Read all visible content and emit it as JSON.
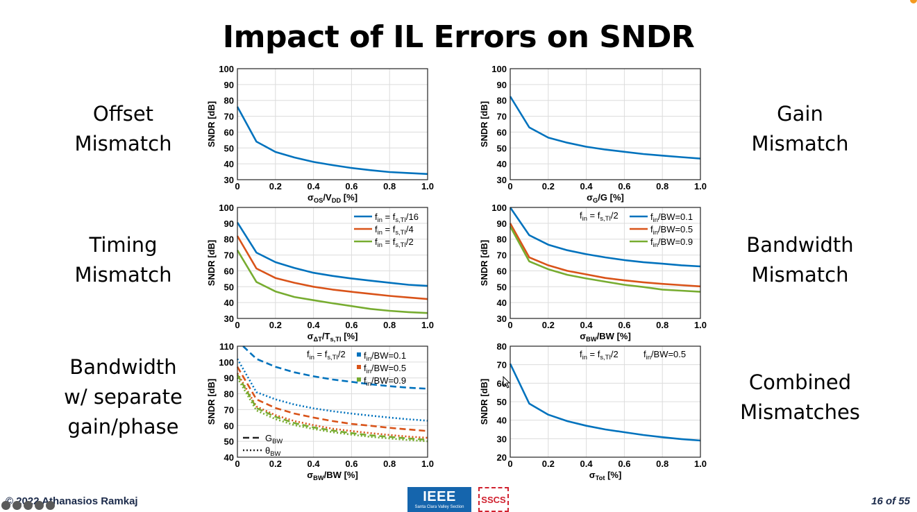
{
  "slide": {
    "title": "Impact of IL Errors on SNDR",
    "footer": "© 2022 Athanasios Ramkaj",
    "page": "16 of 55",
    "logos": {
      "ieee": "IEEE",
      "ieee_sub": "Santa Clara Valley Section",
      "sscs": "SSCS"
    }
  },
  "side_labels": {
    "offset": "Offset\nMismatch",
    "gain": "Gain\nMismatch",
    "timing": "Timing\nMismatch",
    "bandwidth": "Bandwidth\nMismatch",
    "bw_separate": "Bandwidth\nw/ separate\ngain/phase",
    "combined": "Combined\nMismatches"
  },
  "colors": {
    "blue": "#0072bd",
    "orange": "#d95319",
    "green": "#77ac30",
    "orange_accent": "#f39a1f"
  },
  "chart_data": [
    {
      "id": "offset",
      "type": "line",
      "xlabel": "σOS/VDD [%]",
      "ylabel": "SNDR [dB]",
      "xlim": [
        0,
        1
      ],
      "ylim": [
        30,
        100
      ],
      "xticks": [
        "0",
        "0.2",
        "0.4",
        "0.6",
        "0.8",
        "1.0"
      ],
      "yticks": [
        "30",
        "40",
        "50",
        "60",
        "70",
        "80",
        "90",
        "100"
      ],
      "grid": true,
      "annotations": [],
      "series": [
        {
          "color": "#0072bd",
          "dash": "solid",
          "x": [
            0,
            0.1,
            0.2,
            0.3,
            0.4,
            0.5,
            0.6,
            0.7,
            0.8,
            0.9,
            1.0
          ],
          "y": [
            76,
            54,
            47.5,
            44,
            41.2,
            39.2,
            37.4,
            36,
            34.8,
            34.2,
            33.6
          ]
        }
      ]
    },
    {
      "id": "gain",
      "type": "line",
      "xlabel": "σG/G [%]",
      "ylabel": "SNDR [dB]",
      "xlim": [
        0,
        1
      ],
      "ylim": [
        30,
        100
      ],
      "xticks": [
        "0",
        "0.2",
        "0.4",
        "0.6",
        "0.8",
        "1.0"
      ],
      "yticks": [
        "30",
        "40",
        "50",
        "60",
        "70",
        "80",
        "90",
        "100"
      ],
      "grid": true,
      "annotations": [],
      "series": [
        {
          "color": "#0072bd",
          "dash": "solid",
          "x": [
            0,
            0.1,
            0.2,
            0.3,
            0.4,
            0.5,
            0.6,
            0.7,
            0.8,
            0.9,
            1.0
          ],
          "y": [
            82.5,
            63,
            56.5,
            53.3,
            50.8,
            49,
            47.6,
            46.2,
            45.2,
            44.2,
            43.3
          ]
        }
      ]
    },
    {
      "id": "timing",
      "type": "line",
      "xlabel": "σΔT/Ts,TI [%]",
      "ylabel": "SNDR [dB]",
      "xlim": [
        0,
        1
      ],
      "ylim": [
        30,
        100
      ],
      "xticks": [
        "0",
        "0.2",
        "0.4",
        "0.6",
        "0.8",
        "1.0"
      ],
      "yticks": [
        "30",
        "40",
        "50",
        "60",
        "70",
        "80",
        "90",
        "100"
      ],
      "grid": true,
      "annotations": [],
      "legend_position": "top-right",
      "series": [
        {
          "name": "fin = fs,TI/16",
          "color": "#0072bd",
          "dash": "solid",
          "x": [
            0,
            0.1,
            0.2,
            0.3,
            0.4,
            0.5,
            0.6,
            0.7,
            0.8,
            0.9,
            1.0
          ],
          "y": [
            90.5,
            71.5,
            65.5,
            61.8,
            58.8,
            56.8,
            55.2,
            53.8,
            52.5,
            51.2,
            50.5
          ]
        },
        {
          "name": "fin = fs,TI/4",
          "color": "#d95319",
          "dash": "solid",
          "x": [
            0,
            0.1,
            0.2,
            0.3,
            0.4,
            0.5,
            0.6,
            0.7,
            0.8,
            0.9,
            1.0
          ],
          "y": [
            82,
            61.5,
            55.5,
            52.5,
            50,
            48.2,
            46.8,
            45.5,
            44.2,
            43.2,
            42.2
          ]
        },
        {
          "name": "fin = fs,TI/2",
          "color": "#77ac30",
          "dash": "solid",
          "x": [
            0,
            0.1,
            0.2,
            0.3,
            0.4,
            0.5,
            0.6,
            0.7,
            0.8,
            0.9,
            1.0
          ],
          "y": [
            73,
            53,
            47,
            43.5,
            41.5,
            39.6,
            37.8,
            36,
            34.8,
            34,
            33.4
          ]
        }
      ]
    },
    {
      "id": "bandwidth",
      "type": "line",
      "xlabel": "σBW/BW [%]",
      "ylabel": "SNDR [dB]",
      "xlim": [
        0,
        1
      ],
      "ylim": [
        30,
        100
      ],
      "xticks": [
        "0",
        "0.2",
        "0.4",
        "0.6",
        "0.8",
        "1.0"
      ],
      "yticks": [
        "30",
        "40",
        "50",
        "60",
        "70",
        "80",
        "90",
        "100"
      ],
      "grid": true,
      "annotations": [
        "fin = fs,TI/2"
      ],
      "legend_position": "top-right",
      "series": [
        {
          "name": "fin/BW=0.1",
          "color": "#0072bd",
          "dash": "solid",
          "x": [
            0,
            0.1,
            0.2,
            0.3,
            0.4,
            0.5,
            0.6,
            0.7,
            0.8,
            0.9,
            1.0
          ],
          "y": [
            100,
            82.5,
            76.5,
            73,
            70.5,
            68.5,
            66.8,
            65.5,
            64.5,
            63.5,
            62.8
          ]
        },
        {
          "name": "fin/BW=0.5",
          "color": "#d95319",
          "dash": "solid",
          "x": [
            0,
            0.1,
            0.2,
            0.3,
            0.4,
            0.5,
            0.6,
            0.7,
            0.8,
            0.9,
            1.0
          ],
          "y": [
            90,
            68.5,
            63.5,
            60,
            57.8,
            55.5,
            54,
            52.8,
            51.8,
            51,
            50.2
          ]
        },
        {
          "name": "fin/BW=0.9",
          "color": "#77ac30",
          "dash": "solid",
          "x": [
            0,
            0.1,
            0.2,
            0.3,
            0.4,
            0.5,
            0.6,
            0.7,
            0.8,
            0.9,
            1.0
          ],
          "y": [
            88,
            66,
            61,
            57.5,
            55.2,
            53.2,
            51.2,
            49.8,
            48.2,
            47.5,
            46.8
          ]
        }
      ]
    },
    {
      "id": "bw_separate",
      "type": "line",
      "xlabel": "σBW/BW [%]",
      "ylabel": "SNDR [dB]",
      "xlim": [
        0,
        1
      ],
      "ylim": [
        40,
        110
      ],
      "xticks": [
        "0",
        "0.2",
        "0.4",
        "0.6",
        "0.8",
        "1.0"
      ],
      "yticks": [
        "40",
        "50",
        "60",
        "70",
        "80",
        "90",
        "100",
        "110"
      ],
      "grid": true,
      "annotations": [
        "fin = fs,TI/2"
      ],
      "legend_position": "top-right",
      "style_legend": [
        {
          "label": "GBW",
          "dash": "dashed"
        },
        {
          "label": "θBW",
          "dash": "dotted"
        }
      ],
      "series": [
        {
          "name": "fin/BW=0.1",
          "color": "#0072bd",
          "dash": "dashed",
          "x": [
            0.03,
            0.1,
            0.2,
            0.3,
            0.4,
            0.5,
            0.6,
            0.7,
            0.8,
            0.9,
            1.0
          ],
          "y": [
            110,
            102,
            97,
            93.5,
            91,
            89,
            87.5,
            86,
            84.8,
            83.8,
            83.2
          ]
        },
        {
          "color": "#0072bd",
          "dash": "dotted",
          "x": [
            0,
            0.1,
            0.2,
            0.3,
            0.4,
            0.5,
            0.6,
            0.7,
            0.8,
            0.9,
            1.0
          ],
          "y": [
            102,
            81,
            76.5,
            73.2,
            70.8,
            69,
            67.5,
            66.2,
            65,
            63.9,
            63
          ]
        },
        {
          "name": "fin/BW=0.5",
          "color": "#d95319",
          "dash": "dashed",
          "x": [
            0,
            0.1,
            0.2,
            0.3,
            0.4,
            0.5,
            0.6,
            0.7,
            0.8,
            0.9,
            1.0
          ],
          "y": [
            97,
            76.5,
            71,
            67.5,
            65,
            62.8,
            61,
            59.8,
            58.5,
            57.5,
            56.5
          ]
        },
        {
          "color": "#d95319",
          "dash": "dotted",
          "x": [
            0,
            0.1,
            0.2,
            0.3,
            0.4,
            0.5,
            0.6,
            0.7,
            0.8,
            0.9,
            1.0
          ],
          "y": [
            93,
            72,
            66.5,
            62.8,
            60.2,
            58,
            56.5,
            55.2,
            54,
            53,
            52.2
          ]
        },
        {
          "name": "fin/BW=0.9",
          "color": "#77ac30",
          "dash": "dashed",
          "x": [
            0,
            0.1,
            0.2,
            0.3,
            0.4,
            0.5,
            0.6,
            0.7,
            0.8,
            0.9,
            1.0
          ],
          "y": [
            92,
            71,
            65.5,
            61.5,
            58.8,
            56.8,
            55.2,
            53.8,
            52.8,
            51.8,
            51
          ]
        },
        {
          "color": "#77ac30",
          "dash": "dotted",
          "x": [
            0,
            0.1,
            0.2,
            0.3,
            0.4,
            0.5,
            0.6,
            0.7,
            0.8,
            0.9,
            1.0
          ],
          "y": [
            90,
            69.5,
            64,
            60.2,
            57.8,
            55.8,
            54.2,
            52.8,
            51.8,
            50.8,
            50
          ]
        }
      ]
    },
    {
      "id": "combined",
      "type": "line",
      "xlabel": "σTot [%]",
      "ylabel": "SNDR [dB]",
      "xlim": [
        0,
        1
      ],
      "ylim": [
        20,
        80
      ],
      "xticks": [
        "0",
        "0.2",
        "0.4",
        "0.6",
        "0.8",
        "1.0"
      ],
      "yticks": [
        "20",
        "30",
        "40",
        "50",
        "60",
        "70",
        "80"
      ],
      "grid": true,
      "annotations": [
        "fin = fs,TI/2",
        "fin/BW=0.5"
      ],
      "series": [
        {
          "color": "#0072bd",
          "dash": "solid",
          "x": [
            0,
            0.1,
            0.2,
            0.3,
            0.4,
            0.5,
            0.6,
            0.7,
            0.8,
            0.9,
            1.0
          ],
          "y": [
            70.5,
            49,
            43,
            39.5,
            37,
            35,
            33.5,
            32,
            30.8,
            29.8,
            29
          ]
        }
      ]
    }
  ]
}
